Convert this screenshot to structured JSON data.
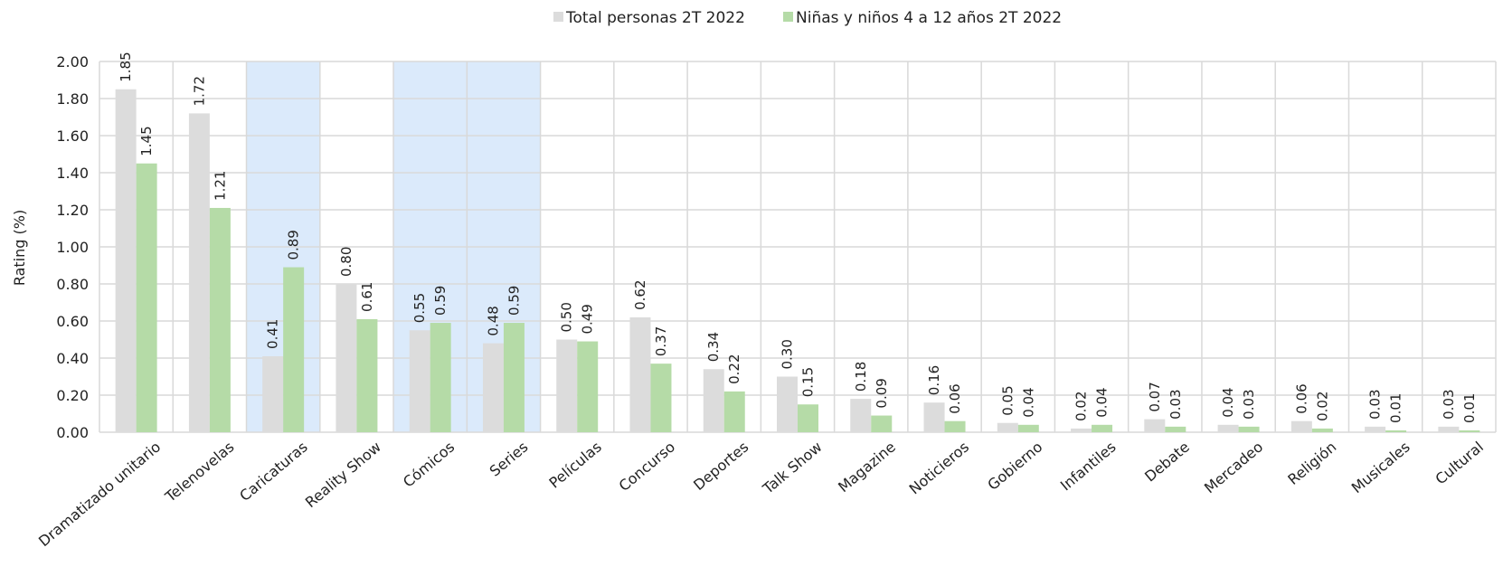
{
  "chart_data": {
    "type": "bar",
    "ylabel": "Rating (%)",
    "ylim": [
      0,
      2.0
    ],
    "yticks": [
      "0.00",
      "0.20",
      "0.40",
      "0.60",
      "0.80",
      "1.00",
      "1.20",
      "1.40",
      "1.60",
      "1.80",
      "2.00"
    ],
    "grid": true,
    "legend_position": "top-center",
    "categories": [
      "Dramatizado unitario",
      "Telenovelas",
      "Caricaturas",
      "Reality Show",
      "Cómicos",
      "Series",
      "Películas",
      "Concurso",
      "Deportes",
      "Talk Show",
      "Magazine",
      "Noticieros",
      "Gobierno",
      "Infantiles",
      "Debate",
      "Mercadeo",
      "Religión",
      "Musicales",
      "Cultural"
    ],
    "highlighted_categories": [
      "Caricaturas",
      "Cómicos",
      "Series"
    ],
    "series": [
      {
        "name": "Total personas 2T 2022",
        "color": "#dcdcdc",
        "values": [
          1.85,
          1.72,
          0.41,
          0.8,
          0.55,
          0.48,
          0.5,
          0.62,
          0.34,
          0.3,
          0.18,
          0.16,
          0.05,
          0.02,
          0.07,
          0.04,
          0.06,
          0.03,
          0.03
        ],
        "labels": [
          "1.85",
          "1.72",
          "0.41",
          "0.80",
          "0.55",
          "0.48",
          "0.50",
          "0.62",
          "0.34",
          "0.30",
          "0.18",
          "0.16",
          "0.05",
          "0.02",
          "0.07",
          "0.04",
          "0.06",
          "0.03",
          "0.03"
        ]
      },
      {
        "name": "Niñas y niños 4 a 12 años 2T 2022",
        "color": "#b5dba7",
        "values": [
          1.45,
          1.21,
          0.89,
          0.61,
          0.59,
          0.59,
          0.49,
          0.37,
          0.22,
          0.15,
          0.09,
          0.06,
          0.04,
          0.04,
          0.03,
          0.03,
          0.02,
          0.01,
          0.01
        ],
        "labels": [
          "1.45",
          "1.21",
          "0.89",
          "0.61",
          "0.59",
          "0.59",
          "0.49",
          "0.37",
          "0.22",
          "0.15",
          "0.09",
          "0.06",
          "0.04",
          "0.04",
          "0.03",
          "0.03",
          "0.02",
          "0.01",
          "0.01"
        ]
      }
    ],
    "highlight_color": "#dbeafb"
  }
}
